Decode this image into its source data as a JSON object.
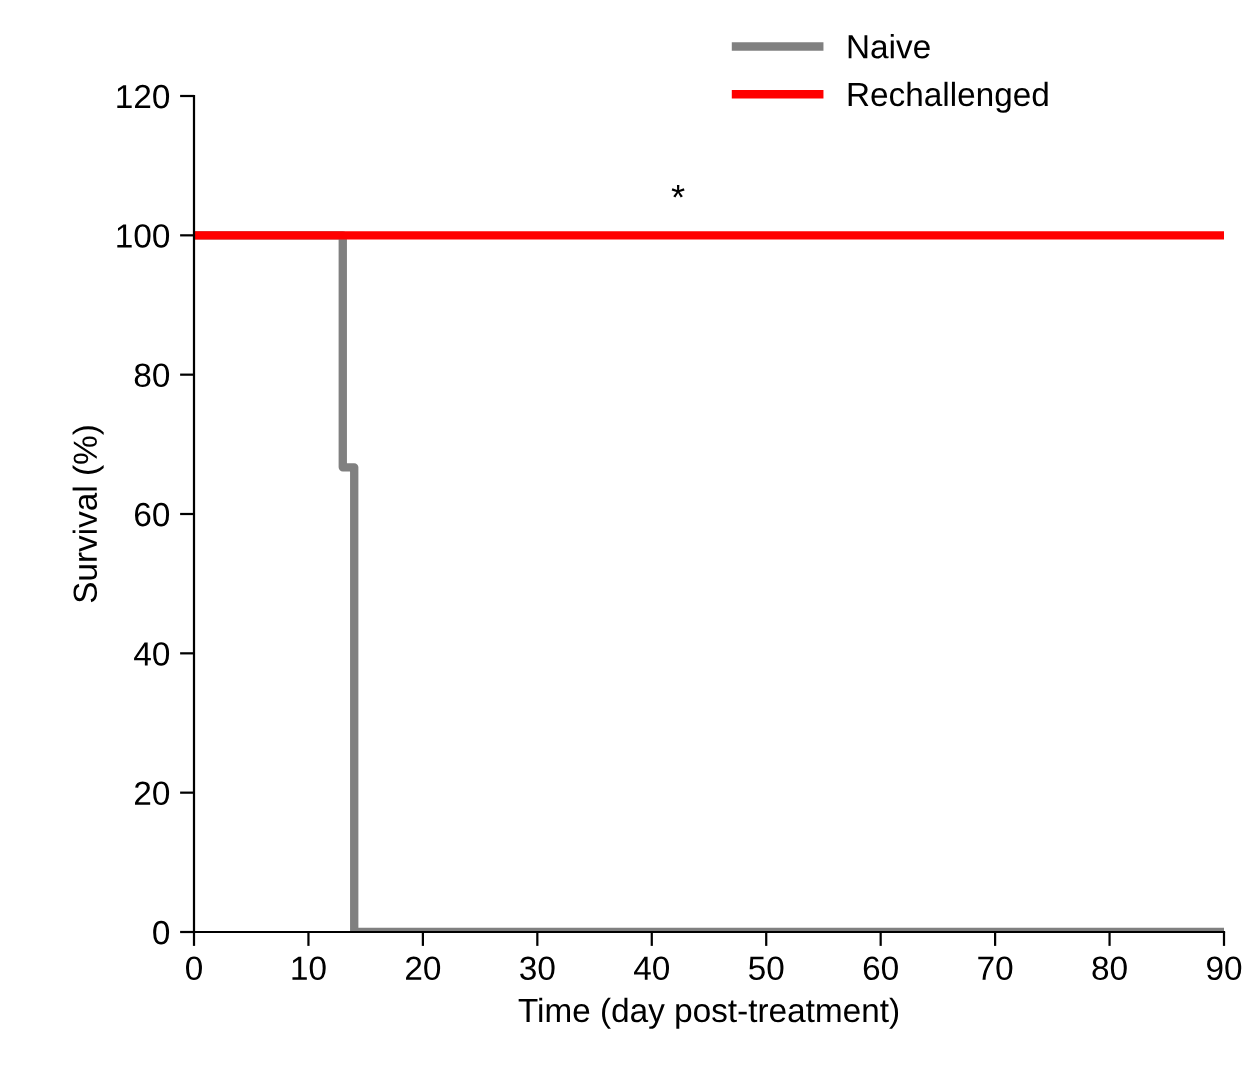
{
  "chart_data": {
    "type": "step",
    "xlabel": "Time (day post-treatment)",
    "ylabel": "Survival (%)",
    "series": [
      {
        "name": "Naive",
        "color": "#808080",
        "x": [
          0,
          13,
          14,
          90
        ],
        "values": [
          100,
          66.7,
          0,
          0
        ]
      },
      {
        "name": "Rechallenged",
        "color": "#ff0000",
        "x": [
          0,
          90
        ],
        "values": [
          100,
          100
        ]
      }
    ],
    "xlim": [
      0,
      90
    ],
    "xticks": [
      0,
      10,
      20,
      30,
      40,
      50,
      60,
      70,
      80,
      90
    ],
    "ylim": [
      0,
      120
    ],
    "yticks": [
      0,
      20,
      40,
      60,
      80,
      100,
      120
    ],
    "annotations": [
      "*"
    ],
    "legend": "top right",
    "grid": false,
    "marker": "none",
    "line_style": "solid"
  }
}
